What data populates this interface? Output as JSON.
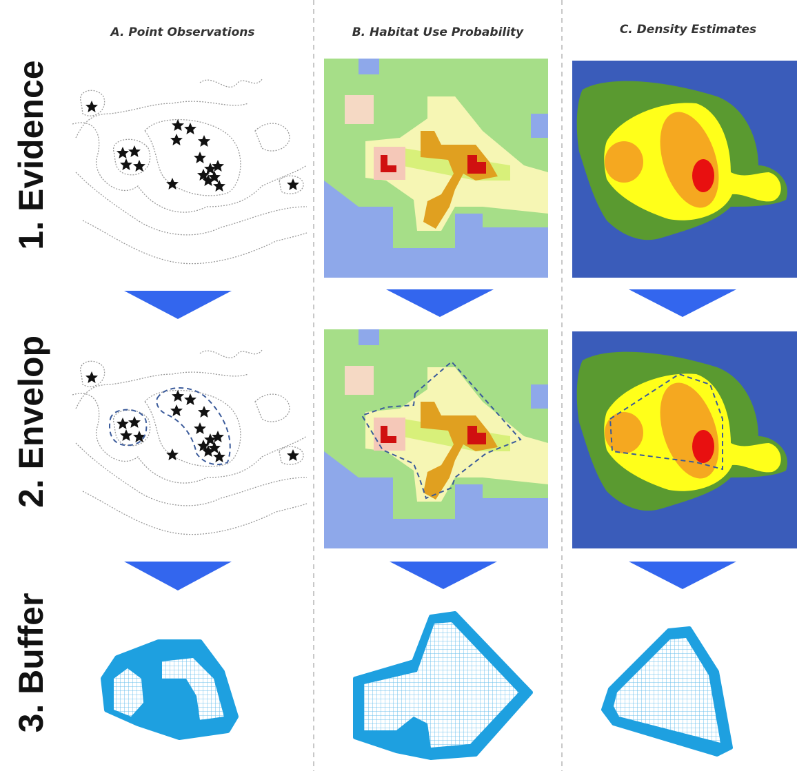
{
  "columns": [
    {
      "title": "A. Point Observations"
    },
    {
      "title": "B. Habitat Use Probability"
    },
    {
      "title": "C. Density Estimates"
    }
  ],
  "rows": [
    {
      "label": "1. Evidence"
    },
    {
      "label": "2. Envelop"
    },
    {
      "label": "3. Buffer"
    }
  ]
}
